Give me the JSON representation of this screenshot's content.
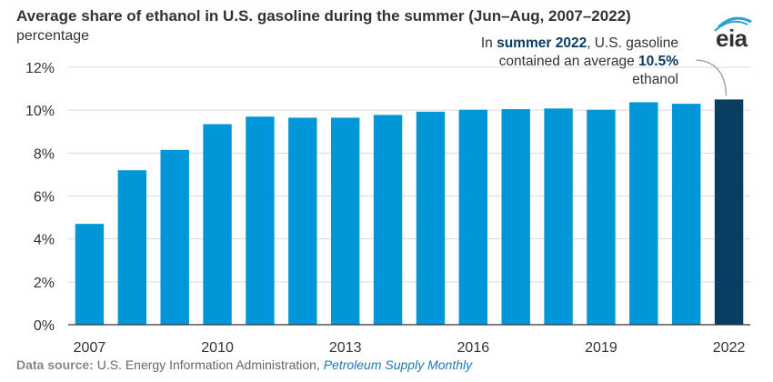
{
  "chart_data": {
    "type": "bar",
    "title": "Average share of ethanol in U.S. gasoline during the summer (Jun–Aug, 2007–2022)",
    "subtitle": "percentage",
    "categories": [
      "2007",
      "2008",
      "2009",
      "2010",
      "2011",
      "2012",
      "2013",
      "2014",
      "2015",
      "2016",
      "2017",
      "2018",
      "2019",
      "2020",
      "2021",
      "2022"
    ],
    "values": [
      4.7,
      7.2,
      8.15,
      9.35,
      9.7,
      9.65,
      9.65,
      9.78,
      9.93,
      10.02,
      10.05,
      10.08,
      10.02,
      10.37,
      10.3,
      10.5
    ],
    "ylim": [
      0,
      12
    ],
    "y_ticks": [
      "0%",
      "2%",
      "4%",
      "6%",
      "8%",
      "10%",
      "12%"
    ],
    "x_tick_labels": [
      "2007",
      "2010",
      "2013",
      "2016",
      "2019",
      "2022"
    ],
    "grid": true,
    "colors": {
      "bar": "#0096d7",
      "highlight": "#0a3d62"
    },
    "highlight_category": "2022"
  },
  "annotation": {
    "line1_pre": "In ",
    "line1_bold": "summer 2022",
    "line1_post": ", U.S. gasoline",
    "line2_pre": "contained an average ",
    "line2_bold": "10.5%",
    "line3": "ethanol"
  },
  "logo": {
    "text": "eia",
    "icon": "eia-logo-icon"
  },
  "source": {
    "label": "Data source:",
    "text": " U.S. Energy Information Administration, ",
    "publication": "Petroleum Supply Monthly"
  }
}
